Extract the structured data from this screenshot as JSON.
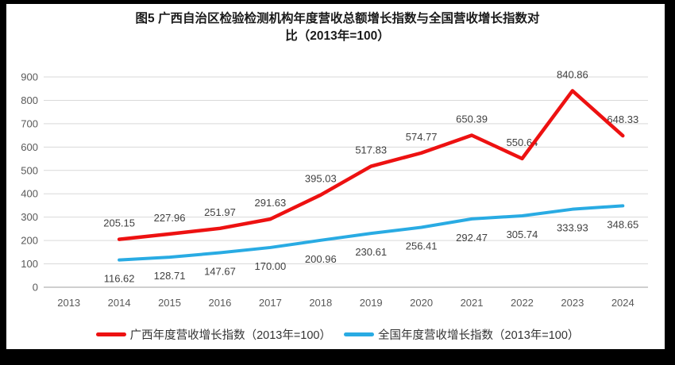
{
  "title": {
    "lines": [
      "图5  广西自治区检验检测机构年度营收总额增长指数与全国营收增长指数对",
      "比（2013年=100）"
    ]
  },
  "chart_data": {
    "type": "line",
    "title": "图5 广西自治区检验检测机构年度营收总额增长指数与全国营收增长指数对比（2013年=100）",
    "xlabel": "",
    "ylabel": "",
    "categories": [
      "2013",
      "2014",
      "2015",
      "2016",
      "2017",
      "2018",
      "2019",
      "2020",
      "2021",
      "2022",
      "2023",
      "2024"
    ],
    "series": [
      {
        "name": "广西年度营收增长指数（2013年=100）",
        "color": "#ED1111",
        "label_position": "above",
        "values": [
          null,
          205.15,
          227.96,
          251.97,
          291.63,
          395.03,
          517.83,
          574.77,
          650.39,
          550.64,
          840.86,
          648.33
        ]
      },
      {
        "name": "全国年度营收增长指数（2013年=100）",
        "color": "#29ABE3",
        "label_position": "below",
        "values": [
          null,
          116.62,
          128.71,
          147.67,
          170.0,
          200.96,
          230.61,
          256.41,
          292.47,
          305.74,
          333.93,
          348.65
        ]
      }
    ],
    "ylim": [
      0,
      900
    ],
    "y_ticks": [
      0,
      100,
      200,
      300,
      400,
      500,
      600,
      700,
      800,
      900
    ],
    "grid": "horizontal",
    "legend_position": "bottom",
    "style": {
      "grid_color": "#d9d9d9",
      "axis_line_color": "#bfbfbf",
      "tick_label_color": "#595959",
      "data_label_color": "#404040",
      "title_color": "#1a1a1a",
      "legend_text_color": "#333333",
      "background": "#ffffff",
      "frame_border": "#000000"
    }
  }
}
